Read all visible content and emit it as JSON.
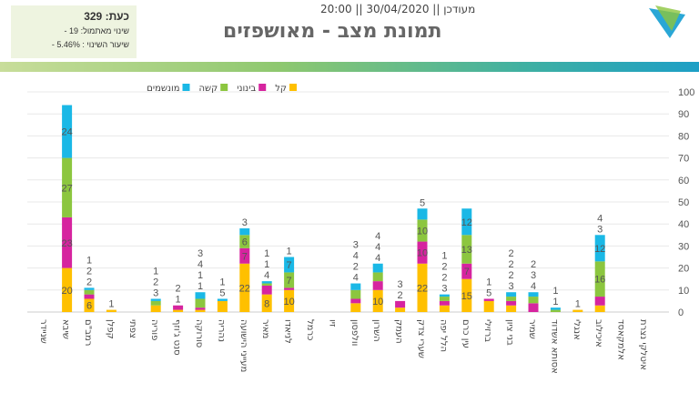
{
  "header": {
    "now": "כעת: 329",
    "change_yesterday": "שינוי מאתמול: 19 -",
    "change_rate": "שיעור השינוי : 5.46% -",
    "title": "תמונת מצב - מאושפזים",
    "updated": "מעודכן || 30/04/2020 || 20:00",
    "logo_text": "משרד הבריאות"
  },
  "chart_data": {
    "type": "bar",
    "stacked": true,
    "title": "",
    "xlabel": "",
    "ylabel": "",
    "ylim": [
      0,
      100
    ],
    "yticks": [
      0,
      10,
      20,
      30,
      40,
      50,
      60,
      70,
      80,
      90,
      100
    ],
    "grid": true,
    "legend_position": "top",
    "categories": [
      "שניידר",
      "שיבא",
      "רמב\"ם",
      "קפלן",
      "צפתי",
      "פוריה",
      "סנט ג'וזף",
      "סורוקה",
      "נהריה",
      "מעייני הישועה",
      "מאיר",
      "לניאדו",
      "כרמל",
      "זיו",
      "וולפסון",
      "השרון",
      "העמק",
      "שערי צדק",
      "הלל יפה",
      "עין כרם",
      "ברזילי",
      "בני ציון",
      "שמיר",
      "אסותא אשדוד",
      "אנגלי",
      "איכילוב",
      "אלמקאסד",
      "איטלקי נצרת"
    ],
    "series": [
      {
        "name": "קל",
        "color": "#ffc000",
        "values": [
          0,
          20,
          6,
          1,
          0,
          3,
          1,
          1,
          5,
          22,
          8,
          10,
          0,
          0,
          4,
          10,
          2,
          22,
          3,
          15,
          5,
          3,
          0,
          0,
          1,
          3,
          0,
          0
        ]
      },
      {
        "name": "בינוני",
        "color": "#d6249f",
        "values": [
          0,
          23,
          2,
          0,
          0,
          0,
          2,
          1,
          0,
          7,
          4,
          1,
          0,
          0,
          2,
          4,
          3,
          10,
          2,
          7,
          1,
          2,
          4,
          0,
          0,
          4,
          0,
          0
        ]
      },
      {
        "name": "קשה",
        "color": "#8cc63f",
        "values": [
          0,
          27,
          2,
          0,
          0,
          2,
          0,
          4,
          0,
          6,
          1,
          7,
          0,
          0,
          4,
          4,
          0,
          10,
          2,
          13,
          0,
          2,
          3,
          1,
          0,
          16,
          0,
          0
        ]
      },
      {
        "name": "מונשמים",
        "color": "#1ab8e6",
        "values": [
          0,
          24,
          1,
          0,
          0,
          1,
          0,
          3,
          1,
          3,
          1,
          7,
          0,
          0,
          3,
          4,
          0,
          5,
          1,
          12,
          0,
          2,
          2,
          1,
          0,
          12,
          0,
          0
        ]
      }
    ]
  }
}
